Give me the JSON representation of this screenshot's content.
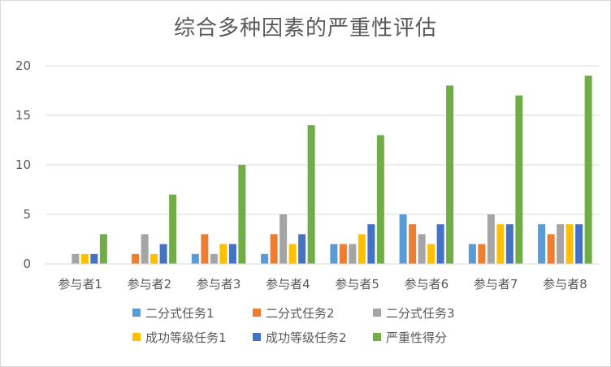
{
  "chart_data": {
    "type": "bar",
    "title": "综合多种因素的严重性评估",
    "xlabel": "",
    "ylabel": "",
    "ylim": [
      0,
      20
    ],
    "yticks": [
      0,
      5,
      10,
      15,
      20
    ],
    "grid": true,
    "legend_position": "bottom",
    "categories": [
      "参与者1",
      "参与者2",
      "参与者3",
      "参与者4",
      "参与者5",
      "参与者6",
      "参与者7",
      "参与者8"
    ],
    "series": [
      {
        "name": "二分式任务1",
        "color": "#5b9bd5",
        "values": [
          0,
          0,
          1,
          1,
          2,
          5,
          2,
          4
        ]
      },
      {
        "name": "二分式任务2",
        "color": "#ed7d31",
        "values": [
          0,
          1,
          3,
          3,
          2,
          4,
          2,
          3
        ]
      },
      {
        "name": "二分式任务3",
        "color": "#a5a5a5",
        "values": [
          1,
          3,
          1,
          5,
          2,
          3,
          5,
          4
        ]
      },
      {
        "name": "成功等级任务1",
        "color": "#ffc000",
        "values": [
          1,
          1,
          2,
          2,
          3,
          2,
          4,
          4
        ]
      },
      {
        "name": "成功等级任务2",
        "color": "#4472c4",
        "values": [
          1,
          2,
          2,
          3,
          4,
          4,
          4,
          4
        ]
      },
      {
        "name": "严重性得分",
        "color": "#70ad47",
        "values": [
          3,
          7,
          10,
          14,
          13,
          18,
          17,
          19
        ]
      }
    ]
  },
  "colors": {
    "gridline": "#d9d9d9",
    "axis": "#d9d9d9",
    "text": "#595959"
  }
}
